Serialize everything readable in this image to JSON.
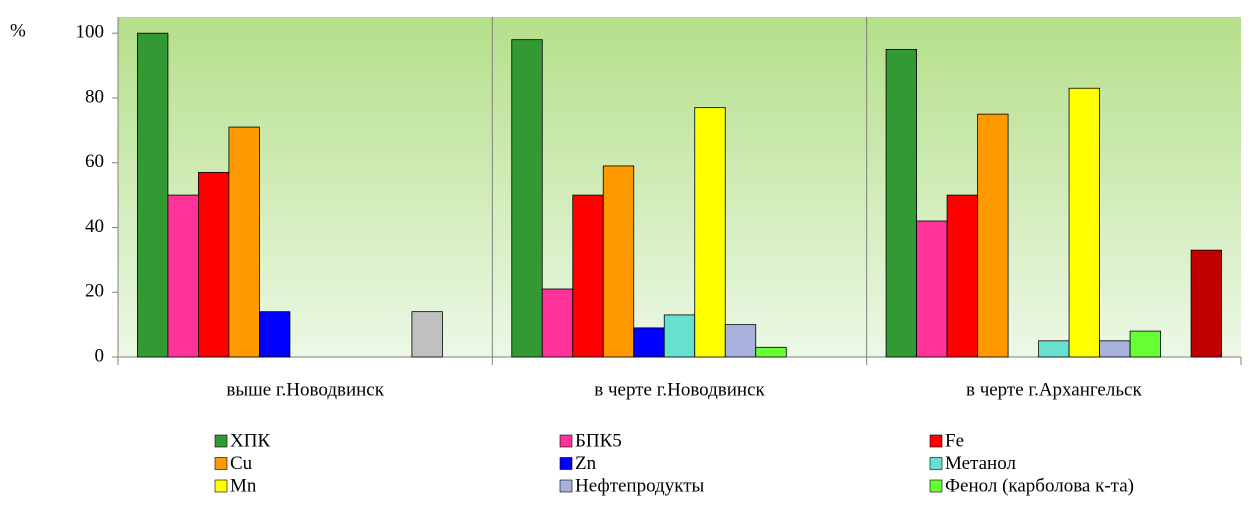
{
  "chart_data": {
    "type": "bar",
    "y_label": "%",
    "categories": [
      "выше г.Новодвинск",
      "в черте г.Новодвинск",
      "в черте г.Архангельск"
    ],
    "series": [
      {
        "name": "ХПК",
        "color": "#339933",
        "values": [
          100,
          98,
          95
        ]
      },
      {
        "name": "БПК5",
        "color": "#ff3399",
        "values": [
          50,
          21,
          42
        ]
      },
      {
        "name": "Fe",
        "color": "#ff0000",
        "values": [
          57,
          50,
          50
        ]
      },
      {
        "name": "Cu",
        "color": "#ff9900",
        "values": [
          71,
          59,
          75
        ]
      },
      {
        "name": "Zn",
        "color": "#0000ff",
        "values": [
          14,
          9,
          null
        ]
      },
      {
        "name": "Метанол",
        "color": "#66e0d0",
        "values": [
          null,
          13,
          5
        ]
      },
      {
        "name": "Mn",
        "color": "#ffff00",
        "values": [
          null,
          77,
          83
        ]
      },
      {
        "name": "Нефтепродукты",
        "color": "#a8b0dc",
        "values": [
          null,
          10,
          5
        ]
      },
      {
        "name": "Фенол (карболова к-та)",
        "color": "#66ff33",
        "values": [
          null,
          3,
          8
        ]
      },
      {
        "name": null,
        "color": "#c0c0c0",
        "values": [
          14,
          null,
          null
        ]
      },
      {
        "name": null,
        "color": "#c00000",
        "values": [
          null,
          null,
          33
        ]
      }
    ],
    "ylim": [
      0,
      105
    ],
    "yticks": [
      0,
      20,
      40,
      60,
      80,
      100
    ]
  }
}
